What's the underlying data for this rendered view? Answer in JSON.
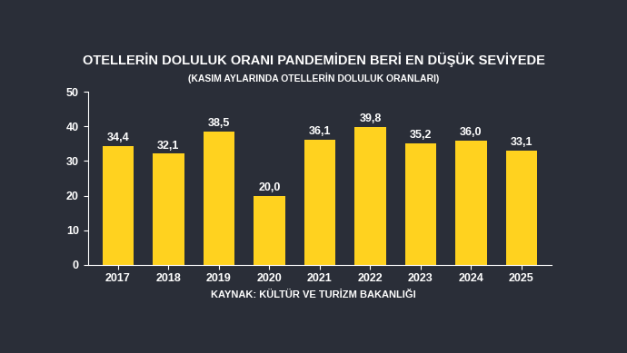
{
  "chart_data": {
    "type": "bar",
    "title": "OTELLERİN DOLULUK ORANI PANDEMİDEN BERİ EN DÜŞÜK SEVİYEDE",
    "subtitle": "(KASIM AYLARINDA OTELLERİN DOLULUK ORANLARI)",
    "source": "KAYNAK: KÜLTÜR VE TURİZM BAKANLIĞI",
    "categories": [
      "2017",
      "2018",
      "2019",
      "2020",
      "2021",
      "2022",
      "2023",
      "2024",
      "2025"
    ],
    "values": [
      34.4,
      32.1,
      38.5,
      20.0,
      36.1,
      39.8,
      35.2,
      36.0,
      33.1
    ],
    "value_labels": [
      "34,4",
      "32,1",
      "38,5",
      "20,0",
      "36,1",
      "39,8",
      "35,2",
      "36,0",
      "33,1"
    ],
    "data_labels": true,
    "color": "#FFD21F",
    "ylim": [
      0,
      50
    ],
    "yticks": [
      0,
      10,
      20,
      30,
      40,
      50
    ],
    "grid": false
  }
}
